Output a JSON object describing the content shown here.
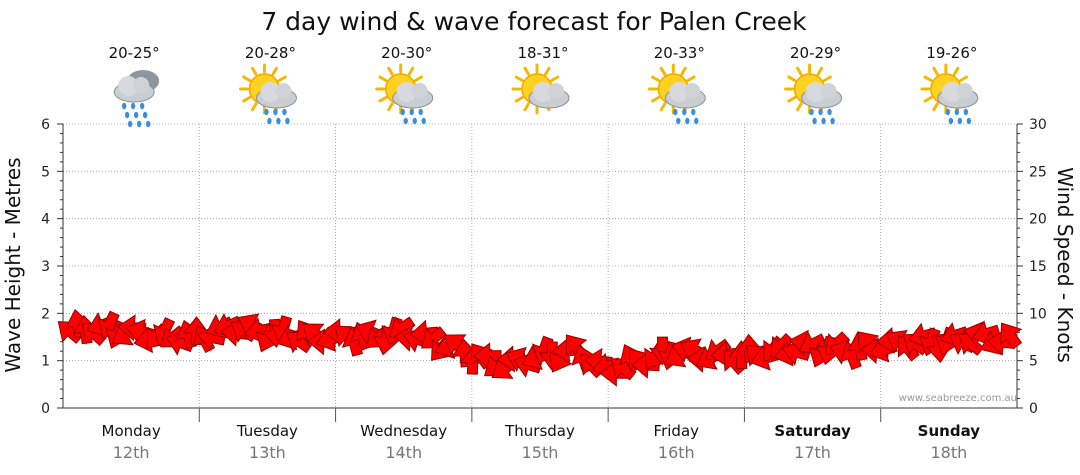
{
  "chart_data": {
    "type": "line",
    "title": "7 day wind & wave forecast for Palen Creek",
    "ylabel_left": "Wave Height - Metres",
    "ylabel_right": "Wind Speed - Knots",
    "ylim_left": [
      0,
      6
    ],
    "ylim_right": [
      0,
      30
    ],
    "yticks_left": [
      "0",
      "1",
      "2",
      "3",
      "4",
      "5",
      "6"
    ],
    "yticks_right": [
      "0",
      "5",
      "10",
      "15",
      "20",
      "25",
      "30"
    ],
    "credit": "www.seabreeze.com.au",
    "days": [
      {
        "name": "Monday",
        "date": "12th",
        "temp": "20-25°",
        "icon": "rain-cloud-icon",
        "bold": false
      },
      {
        "name": "Tuesday",
        "date": "13th",
        "temp": "20-28°",
        "icon": "sun-cloud-rain-icon",
        "bold": false
      },
      {
        "name": "Wednesday",
        "date": "14th",
        "temp": "20-30°",
        "icon": "sun-cloud-rain-icon",
        "bold": false
      },
      {
        "name": "Thursday",
        "date": "15th",
        "temp": "18-31°",
        "icon": "sun-cloud-icon",
        "bold": false
      },
      {
        "name": "Friday",
        "date": "16th",
        "temp": "20-33°",
        "icon": "sun-cloud-rain-icon",
        "bold": false
      },
      {
        "name": "Saturday",
        "date": "17th",
        "temp": "20-29°",
        "icon": "sun-cloud-rain-icon",
        "bold": true
      },
      {
        "name": "Sunday",
        "date": "18th",
        "temp": "19-26°",
        "icon": "sun-cloud-rain-icon",
        "bold": true
      }
    ],
    "series": [
      {
        "name": "Wind speed (knots)",
        "x_days": [
          0.0,
          0.25,
          0.5,
          0.75,
          1.0,
          1.25,
          1.5,
          1.75,
          2.0,
          2.25,
          2.5,
          2.75,
          3.0,
          3.25,
          3.5,
          3.75,
          4.0,
          4.25,
          4.5,
          4.75,
          5.0,
          5.25,
          5.5,
          5.75,
          6.0,
          6.25,
          6.5,
          6.75,
          7.0
        ],
        "values": [
          8,
          8.5,
          8,
          7.5,
          7.5,
          8.5,
          8,
          7.5,
          7.5,
          7.5,
          8,
          7,
          5.5,
          4.5,
          5.5,
          6,
          4,
          5,
          6,
          5.5,
          5.5,
          6,
          6.5,
          6,
          6.5,
          7,
          7,
          7.5,
          7
        ]
      }
    ],
    "colors": {
      "arrow": "#ff0000",
      "arrow_outline": "#990000",
      "grid": "#999999"
    }
  }
}
